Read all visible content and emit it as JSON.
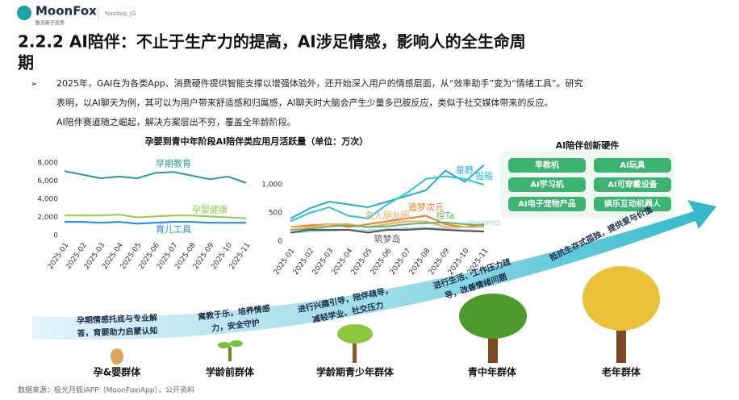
{
  "header": {
    "brand": "MoonFox",
    "slogan": "数见新于优秀",
    "ticker": "Nasdaq: JG"
  },
  "title_lines": [
    "2.2.2 AI陪伴：不止于生产力的提高，AI涉足情感，影响人的全生命周",
    "期"
  ],
  "bullet_lines": [
    "2025年，GAI在为各类App、消费硬件提供智能支撑以增强体验外，还开始深入用户的情感层面，从“效率助手”变为“情绪工具”。研究",
    "表明，以AI聊天为例，其可以为用户带来舒适感和归属感，AI聊天时大脑会产生少量多巴胺反应，类似于社交媒体带来的反应。",
    "AI陪伴赛道随之崛起，解决方案层出不穷，覆盖全年龄阶段。"
  ],
  "chart_heading": "孕婴到青中年阶段AI陪伴类应用月活跃量（单位：万次）",
  "chart_data": [
    {
      "type": "line",
      "categories": [
        "2025-01",
        "2025-02",
        "2025-03",
        "2025-04",
        "2025-05",
        "2025-06",
        "2025-07",
        "2025-08",
        "2025-09",
        "2025-10",
        "2025-11"
      ],
      "ylim": [
        0,
        8000
      ],
      "yticks": [
        0,
        {
          "value": 2000,
          "label": "2,000"
        },
        {
          "value": 4000,
          "label": "4,000"
        },
        {
          "value": 6000,
          "label": "6,000"
        },
        {
          "value": 8000,
          "label": "8,000"
        }
      ],
      "series": [
        {
          "name": "早期教育",
          "color": "#2a9d8f",
          "values": [
            7100,
            6700,
            6300,
            6500,
            6300,
            6900,
            7000,
            6600,
            6200,
            6500,
            5800
          ]
        },
        {
          "name": "孕婴健康",
          "color": "#8ccf4d",
          "values": [
            2200,
            2200,
            2200,
            2300,
            2000,
            2100,
            2200,
            2200,
            2100,
            2000,
            1900
          ]
        },
        {
          "name": "育儿工具",
          "color": "#1e88e5",
          "values": [
            1500,
            1500,
            1400,
            1500,
            1300,
            1400,
            1500,
            1500,
            1400,
            1400,
            1400
          ]
        }
      ]
    },
    {
      "type": "line",
      "categories": [
        "2025-01",
        "2025-02",
        "2025-03",
        "2025-04",
        "2025-05",
        "2025-06",
        "2025-07",
        "2025-08",
        "2025-09",
        "2025-10",
        "2025-11"
      ],
      "ylim": [
        0,
        1400
      ],
      "yticks": [
        0,
        500,
        {
          "value": 1000,
          "label": "1,000"
        }
      ],
      "series": [
        {
          "name": "星野",
          "color": "#29a9e0",
          "values": [
            400,
            580,
            700,
            650,
            600,
            700,
            800,
            900,
            1250,
            1050,
            1350
          ]
        },
        {
          "name": "猫箱",
          "color": "#26c6da",
          "values": [
            350,
            500,
            600,
            450,
            400,
            650,
            850,
            1100,
            1150,
            1100,
            1000
          ]
        },
        {
          "name": "造梦次元",
          "color": "#f07a2a",
          "values": [
            250,
            280,
            300,
            250,
            300,
            350,
            400,
            450,
            300,
            250,
            300
          ]
        },
        {
          "name": "名人朋友圈",
          "color": "#f5a962",
          "values": [
            250,
            250,
            300,
            300,
            250,
            300,
            350,
            350,
            250,
            250,
            250
          ]
        },
        {
          "name": "lovemo",
          "color": "#9fd8e0",
          "values": [
            150,
            170,
            180,
            200,
            190,
            210,
            230,
            240,
            220,
            200,
            180
          ]
        },
        {
          "name": "捏Ta",
          "color": "#5cb85c",
          "values": [
            200,
            220,
            260,
            280,
            250,
            260,
            300,
            320,
            330,
            300,
            280
          ]
        },
        {
          "name": "筑梦岛",
          "color": "#555555",
          "values": [
            150,
            200,
            200,
            200,
            150,
            200,
            200,
            220,
            200,
            180,
            170
          ]
        }
      ]
    }
  ],
  "hardware": {
    "title": "AI陪伴创新硬件",
    "items": [
      "早教机",
      "AI玩具",
      "AI学习机",
      "AI可穿戴设备",
      "AI电子宠物产品",
      "娱乐互动机器人"
    ]
  },
  "stages": [
    {
      "lines": [
        "孕期情感托底与专业解",
        "答，育婴助力启蒙认知"
      ],
      "group": "孕&婴群体"
    },
    {
      "lines": [
        "寓教于乐，培养情感",
        "力，安全守护"
      ],
      "group": "学龄前群体"
    },
    {
      "lines": [
        "进行兴趣引导，陪伴疏导，",
        "减轻学业、社交压力"
      ],
      "group": "学龄期青少年群体"
    },
    {
      "lines": [
        "进行生活、工作压力疏",
        "导，改善情绪问题"
      ],
      "group": "青中年群体"
    },
    {
      "lines": [
        "抵抗生存式孤独，提供爱与价值"
      ],
      "group": "老年群体"
    }
  ],
  "source": "数据来源：极光月狐iAPP（MoonFoxiApp），公开资料"
}
